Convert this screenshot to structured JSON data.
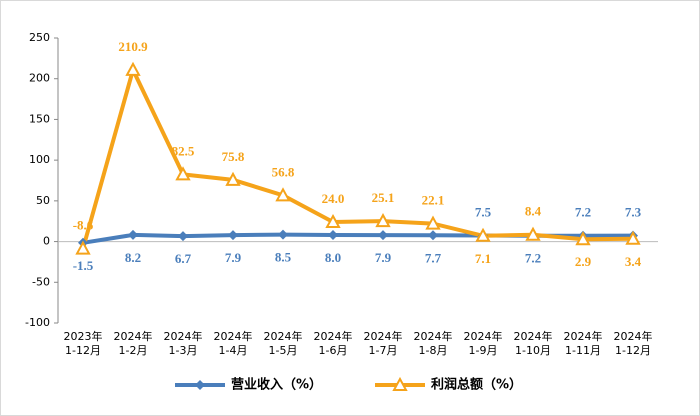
{
  "chart_data": {
    "type": "line",
    "categories": [
      [
        "2023年",
        "1-12月"
      ],
      [
        "2024年",
        "1-2月"
      ],
      [
        "2024年",
        "1-3月"
      ],
      [
        "2024年",
        "1-4月"
      ],
      [
        "2024年",
        "1-5月"
      ],
      [
        "2024年",
        "1-6月"
      ],
      [
        "2024年",
        "1-7月"
      ],
      [
        "2024年",
        "1-8月"
      ],
      [
        "2024年",
        "1-9月"
      ],
      [
        "2024年",
        "1-10月"
      ],
      [
        "2024年",
        "1-11月"
      ],
      [
        "2024年",
        "1-12月"
      ]
    ],
    "series": [
      {
        "name": "营业收入（%）",
        "color": "#4a7ebb",
        "marker": "diamond",
        "values": [
          -1.5,
          8.2,
          6.7,
          7.9,
          8.5,
          8.0,
          7.9,
          7.7,
          7.5,
          7.2,
          7.2,
          7.3
        ],
        "value_labels": [
          "-1.5",
          "8.2",
          "6.7",
          "7.9",
          "8.5",
          "8.0",
          "7.9",
          "7.7",
          "7.5",
          "7.2",
          "7.2",
          "7.3"
        ]
      },
      {
        "name": "利润总额（%）",
        "color": "#f5a31a",
        "marker": "triangle",
        "values": [
          -8.6,
          210.9,
          82.5,
          75.8,
          56.8,
          24.0,
          25.1,
          22.1,
          7.1,
          8.4,
          2.9,
          3.4
        ],
        "value_labels": [
          "-8.6",
          "210.9",
          "82.5",
          "75.8",
          "56.8",
          "24.0",
          "25.1",
          "22.1",
          "7.1",
          "8.4",
          "2.9",
          "3.4"
        ]
      }
    ],
    "ylim": [
      -100,
      250
    ],
    "yticks": [
      -100,
      -50,
      0,
      50,
      100,
      150,
      200,
      250
    ],
    "grid": false,
    "legend": "bottom"
  }
}
